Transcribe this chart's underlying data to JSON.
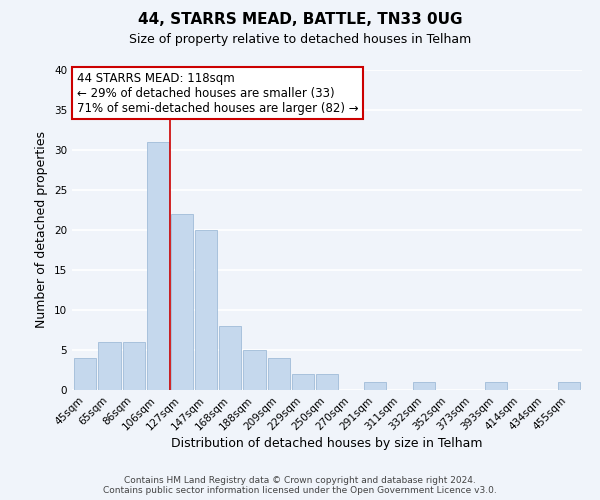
{
  "title": "44, STARRS MEAD, BATTLE, TN33 0UG",
  "subtitle": "Size of property relative to detached houses in Telham",
  "xlabel": "Distribution of detached houses by size in Telham",
  "ylabel": "Number of detached properties",
  "bar_labels": [
    "45sqm",
    "65sqm",
    "86sqm",
    "106sqm",
    "127sqm",
    "147sqm",
    "168sqm",
    "188sqm",
    "209sqm",
    "229sqm",
    "250sqm",
    "270sqm",
    "291sqm",
    "311sqm",
    "332sqm",
    "352sqm",
    "373sqm",
    "393sqm",
    "414sqm",
    "434sqm",
    "455sqm"
  ],
  "bar_values": [
    4,
    6,
    6,
    31,
    22,
    20,
    8,
    5,
    4,
    2,
    2,
    0,
    1,
    0,
    1,
    0,
    0,
    1,
    0,
    0,
    1
  ],
  "bar_color": "#c5d8ed",
  "bar_edge_color": "#a0bcd8",
  "vline_x_index": 3.5,
  "vline_color": "#cc0000",
  "annotation_line1": "44 STARRS MEAD: 118sqm",
  "annotation_line2": "← 29% of detached houses are smaller (33)",
  "annotation_line3": "71% of semi-detached houses are larger (82) →",
  "annotation_box_color": "#ffffff",
  "annotation_box_edge_color": "#cc0000",
  "ylim": [
    0,
    40
  ],
  "yticks": [
    0,
    5,
    10,
    15,
    20,
    25,
    30,
    35,
    40
  ],
  "bg_color": "#f0f4fa",
  "grid_color": "#ffffff",
  "footer_line1": "Contains HM Land Registry data © Crown copyright and database right 2024.",
  "footer_line2": "Contains public sector information licensed under the Open Government Licence v3.0.",
  "title_fontsize": 11,
  "subtitle_fontsize": 9,
  "xlabel_fontsize": 9,
  "ylabel_fontsize": 9,
  "annotation_fontsize": 8.5,
  "footer_fontsize": 6.5,
  "tick_fontsize": 7.5
}
